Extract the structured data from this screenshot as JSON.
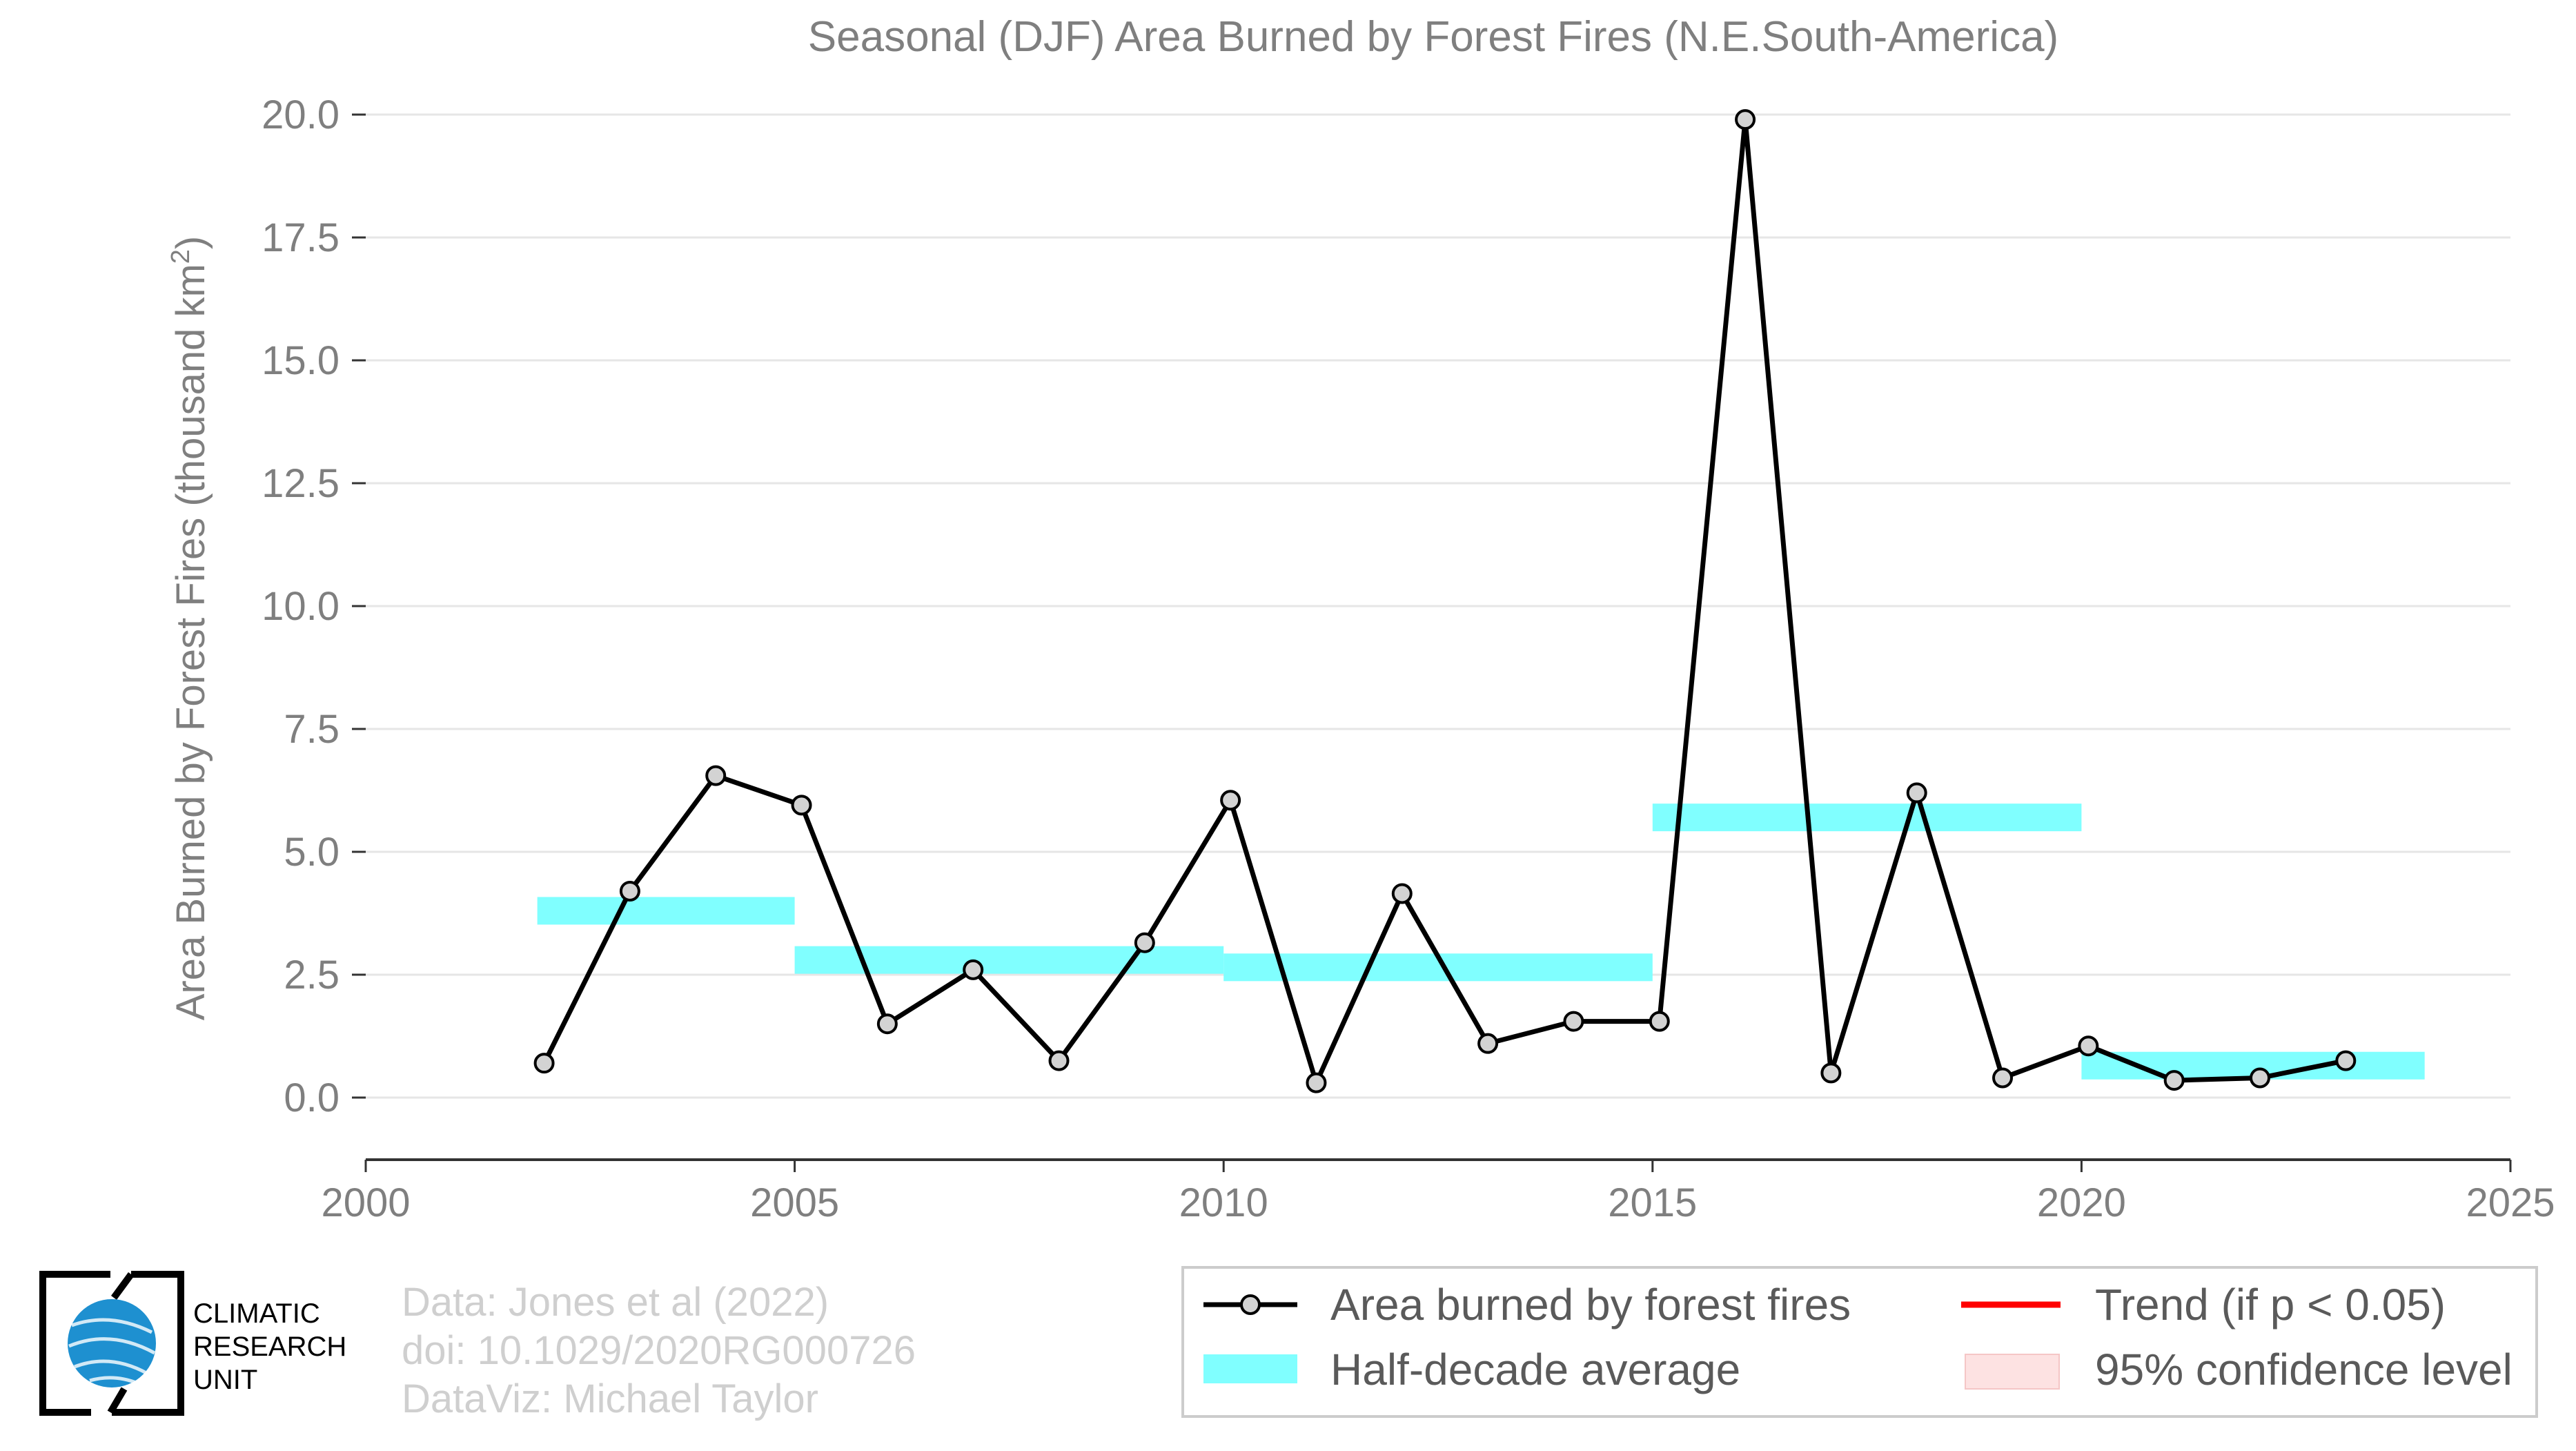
{
  "chart_data": {
    "type": "line",
    "title": "Seasonal (DJF) Area Burned by Forest Fires (N.E.South-America)",
    "ylabel_main": "Area Burned by Forest Fires (thousand km",
    "ylabel_sup": "2",
    "ylabel_end": ")",
    "xlim": [
      2000,
      2025
    ],
    "ylim": [
      -1.25,
      20.5
    ],
    "yticks": [
      "0.0",
      "2.5",
      "5.0",
      "7.5",
      "10.0",
      "12.5",
      "15.0",
      "17.5",
      "20.0"
    ],
    "xticks": [
      "2000",
      "2005",
      "2010",
      "2015",
      "2020",
      "2025"
    ],
    "grid": "horizontal",
    "legend_position": "bottom-right",
    "series": [
      {
        "name": "Area burned by forest fires",
        "color": "#000000",
        "marker_color": "#d3d3d3",
        "x": [
          2002.08,
          2003.08,
          2004.08,
          2005.08,
          2006.08,
          2007.08,
          2008.08,
          2009.08,
          2010.08,
          2011.08,
          2012.08,
          2013.08,
          2014.08,
          2015.08,
          2016.08,
          2017.08,
          2018.08,
          2019.08,
          2020.08,
          2021.08,
          2022.08,
          2023.08
        ],
        "y": [
          0.7,
          4.2,
          6.55,
          5.95,
          1.5,
          2.6,
          0.75,
          3.15,
          6.05,
          0.3,
          4.15,
          1.1,
          1.55,
          1.55,
          19.9,
          0.5,
          6.2,
          0.4,
          1.05,
          0.35,
          0.4,
          0.75
        ]
      },
      {
        "name": "Half-decade average",
        "color": "#80ffff",
        "segments": [
          {
            "x0": 2002,
            "x1": 2005,
            "y": 3.8
          },
          {
            "x0": 2005,
            "x1": 2010,
            "y": 2.8
          },
          {
            "x0": 2010,
            "x1": 2015,
            "y": 2.65
          },
          {
            "x0": 2015,
            "x1": 2020,
            "y": 5.7
          },
          {
            "x0": 2020,
            "x1": 2024,
            "y": 0.65
          }
        ]
      }
    ]
  },
  "legend": {
    "series_label": "Area burned by forest fires",
    "average_label": "Half-decade average",
    "trend_label": "Trend (if p < 0.05)",
    "confidence_label": "95% confidence level",
    "trend_color": "#ff0000",
    "confidence_color": "#fde2e2"
  },
  "credits": {
    "line1": "Data: Jones et al (2022)",
    "line2": "doi: 10.1029/2020RG000726",
    "line3": "DataViz: Michael Taylor"
  },
  "logo": {
    "line1": "CLIMATIC",
    "line2": "RESEARCH",
    "line3": "UNIT",
    "color": "#1e90d0"
  }
}
